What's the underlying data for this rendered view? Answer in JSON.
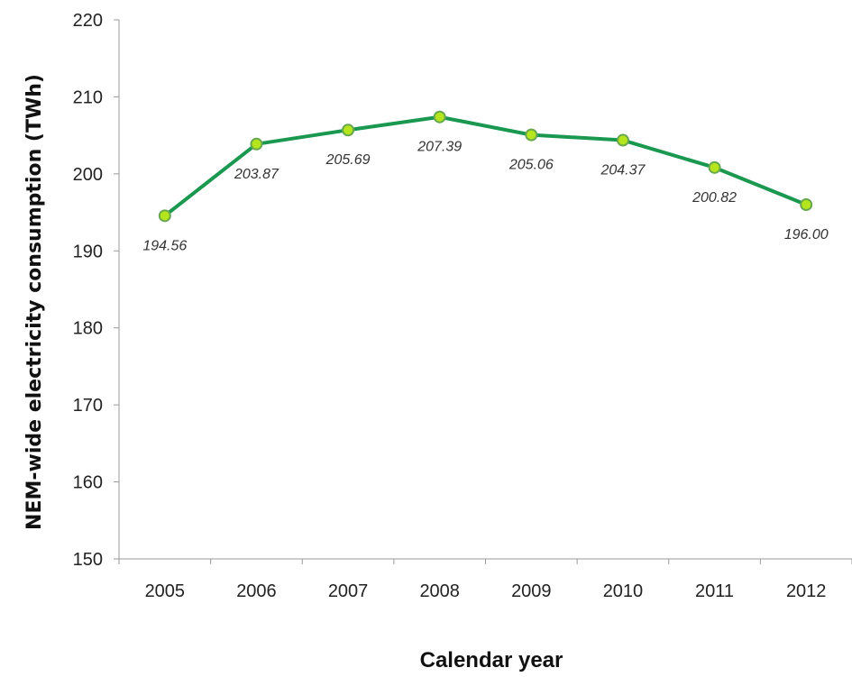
{
  "chart_data": {
    "type": "line",
    "title": "",
    "xlabel": "Calendar year",
    "ylabel": "NEM-wide electricity consumption (TWh)",
    "ylim": [
      150,
      220
    ],
    "yticks": [
      150,
      160,
      170,
      180,
      190,
      200,
      210,
      220
    ],
    "categories": [
      "2005",
      "2006",
      "2007",
      "2008",
      "2009",
      "2010",
      "2011",
      "2012"
    ],
    "series": [
      {
        "values": [
          194.56,
          203.87,
          205.69,
          207.39,
          205.06,
          204.37,
          200.82,
          196.0
        ],
        "labels": [
          "194.56",
          "203.87",
          "205.69",
          "207.39",
          "205.06",
          "204.37",
          "200.82",
          "196.00"
        ]
      }
    ],
    "grid": false,
    "legend": "none",
    "colors": {
      "line": "#1a9850",
      "marker_fill": "#b5e61d",
      "marker_edge": "#6aa84f",
      "axis": "#999999"
    }
  }
}
